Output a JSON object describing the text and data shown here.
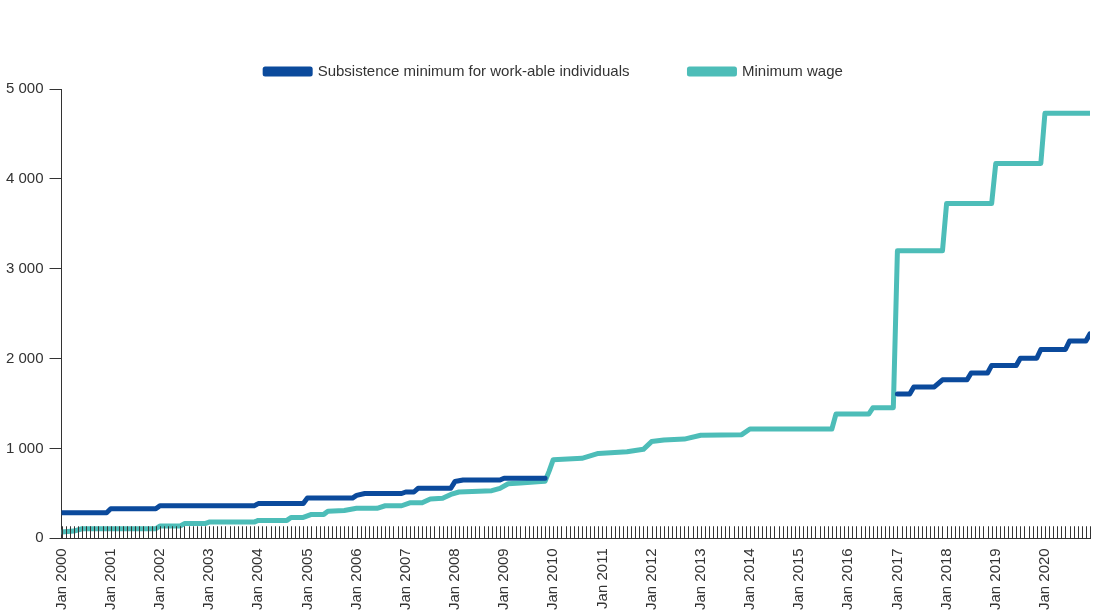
{
  "chart_data": {
    "type": "line",
    "legend": "top",
    "xlim": [
      "2000-01",
      "2020-12"
    ],
    "ylim": [
      0,
      5000
    ],
    "yticks": [
      0,
      {
        "value": 1000,
        "label": "1 000"
      },
      {
        "value": 2000,
        "label": "2 000"
      },
      {
        "value": 3000,
        "label": "3 000"
      },
      {
        "value": 4000,
        "label": "4 000"
      },
      {
        "value": 5000,
        "label": "5 000"
      }
    ],
    "xticks": [
      {
        "value": "2000-01",
        "label": "Jan 2000"
      },
      {
        "value": "2000-02",
        "label": null
      },
      {
        "value": "2000-03",
        "label": null
      },
      {
        "value": "2000-04",
        "label": null
      },
      {
        "value": "2000-05",
        "label": null
      },
      {
        "value": "2000-06",
        "label": null
      },
      {
        "value": "2000-07",
        "label": null
      },
      {
        "value": "2000-08",
        "label": null
      },
      {
        "value": "2000-09",
        "label": null
      },
      {
        "value": "2000-10",
        "label": null
      },
      {
        "value": "2000-11",
        "label": null
      },
      {
        "value": "2000-12",
        "label": null
      },
      {
        "value": "2001-01",
        "label": "Jan 2001"
      },
      {
        "value": "2001-02",
        "label": null
      },
      {
        "value": "2001-03",
        "label": null
      },
      {
        "value": "2001-04",
        "label": null
      },
      {
        "value": "2001-05",
        "label": null
      },
      {
        "value": "2001-06",
        "label": null
      },
      {
        "value": "2001-07",
        "label": null
      },
      {
        "value": "2001-08",
        "label": null
      },
      {
        "value": "2001-09",
        "label": null
      },
      {
        "value": "2001-10",
        "label": null
      },
      {
        "value": "2001-11",
        "label": null
      },
      {
        "value": "2001-12",
        "label": null
      },
      {
        "value": "2002-01",
        "label": "Jan 2002"
      },
      {
        "value": "2002-02",
        "label": null
      },
      {
        "value": "2002-03",
        "label": null
      },
      {
        "value": "2002-04",
        "label": null
      },
      {
        "value": "2002-05",
        "label": null
      },
      {
        "value": "2002-06",
        "label": null
      },
      {
        "value": "2002-07",
        "label": null
      },
      {
        "value": "2002-08",
        "label": null
      },
      {
        "value": "2002-09",
        "label": null
      },
      {
        "value": "2002-10",
        "label": null
      },
      {
        "value": "2002-11",
        "label": null
      },
      {
        "value": "2002-12",
        "label": null
      },
      {
        "value": "2003-01",
        "label": "Jan 2003"
      },
      {
        "value": "2003-02",
        "label": null
      },
      {
        "value": "2003-03",
        "label": null
      },
      {
        "value": "2003-04",
        "label": null
      },
      {
        "value": "2003-05",
        "label": null
      },
      {
        "value": "2003-06",
        "label": null
      },
      {
        "value": "2003-07",
        "label": null
      },
      {
        "value": "2003-08",
        "label": null
      },
      {
        "value": "2003-09",
        "label": null
      },
      {
        "value": "2003-10",
        "label": null
      },
      {
        "value": "2003-11",
        "label": null
      },
      {
        "value": "2003-12",
        "label": null
      },
      {
        "value": "2004-01",
        "label": "Jan 2004"
      },
      {
        "value": "2004-02",
        "label": null
      },
      {
        "value": "2004-03",
        "label": null
      },
      {
        "value": "2004-04",
        "label": null
      },
      {
        "value": "2004-05",
        "label": null
      },
      {
        "value": "2004-06",
        "label": null
      },
      {
        "value": "2004-07",
        "label": null
      },
      {
        "value": "2004-08",
        "label": null
      },
      {
        "value": "2004-09",
        "label": null
      },
      {
        "value": "2004-10",
        "label": null
      },
      {
        "value": "2004-11",
        "label": null
      },
      {
        "value": "2004-12",
        "label": null
      },
      {
        "value": "2005-01",
        "label": "Jan 2005"
      },
      {
        "value": "2005-02",
        "label": null
      },
      {
        "value": "2005-03",
        "label": null
      },
      {
        "value": "2005-04",
        "label": null
      },
      {
        "value": "2005-05",
        "label": null
      },
      {
        "value": "2005-06",
        "label": null
      },
      {
        "value": "2005-07",
        "label": null
      },
      {
        "value": "2005-08",
        "label": null
      },
      {
        "value": "2005-09",
        "label": null
      },
      {
        "value": "2005-10",
        "label": null
      },
      {
        "value": "2005-11",
        "label": null
      },
      {
        "value": "2005-12",
        "label": null
      },
      {
        "value": "2006-01",
        "label": "Jan 2006"
      },
      {
        "value": "2006-02",
        "label": null
      },
      {
        "value": "2006-03",
        "label": null
      },
      {
        "value": "2006-04",
        "label": null
      },
      {
        "value": "2006-05",
        "label": null
      },
      {
        "value": "2006-06",
        "label": null
      },
      {
        "value": "2006-07",
        "label": null
      },
      {
        "value": "2006-08",
        "label": null
      },
      {
        "value": "2006-09",
        "label": null
      },
      {
        "value": "2006-10",
        "label": null
      },
      {
        "value": "2006-11",
        "label": null
      },
      {
        "value": "2006-12",
        "label": null
      },
      {
        "value": "2007-01",
        "label": "Jan 2007"
      },
      {
        "value": "2007-02",
        "label": null
      },
      {
        "value": "2007-03",
        "label": null
      },
      {
        "value": "2007-04",
        "label": null
      },
      {
        "value": "2007-05",
        "label": null
      },
      {
        "value": "2007-06",
        "label": null
      },
      {
        "value": "2007-07",
        "label": null
      },
      {
        "value": "2007-08",
        "label": null
      },
      {
        "value": "2007-09",
        "label": null
      },
      {
        "value": "2007-10",
        "label": null
      },
      {
        "value": "2007-11",
        "label": null
      },
      {
        "value": "2007-12",
        "label": null
      },
      {
        "value": "2008-01",
        "label": "Jan 2008"
      },
      {
        "value": "2008-02",
        "label": null
      },
      {
        "value": "2008-03",
        "label": null
      },
      {
        "value": "2008-04",
        "label": null
      },
      {
        "value": "2008-05",
        "label": null
      },
      {
        "value": "2008-06",
        "label": null
      },
      {
        "value": "2008-07",
        "label": null
      },
      {
        "value": "2008-08",
        "label": null
      },
      {
        "value": "2008-09",
        "label": null
      },
      {
        "value": "2008-10",
        "label": null
      },
      {
        "value": "2008-11",
        "label": null
      },
      {
        "value": "2008-12",
        "label": null
      },
      {
        "value": "2009-01",
        "label": "Jan 2009"
      },
      {
        "value": "2009-02",
        "label": null
      },
      {
        "value": "2009-03",
        "label": null
      },
      {
        "value": "2009-04",
        "label": null
      },
      {
        "value": "2009-05",
        "label": null
      },
      {
        "value": "2009-06",
        "label": null
      },
      {
        "value": "2009-07",
        "label": null
      },
      {
        "value": "2009-08",
        "label": null
      },
      {
        "value": "2009-09",
        "label": null
      },
      {
        "value": "2009-10",
        "label": null
      },
      {
        "value": "2009-11",
        "label": null
      },
      {
        "value": "2009-12",
        "label": null
      },
      {
        "value": "2010-01",
        "label": "Jan 2010"
      },
      {
        "value": "2010-02",
        "label": null
      },
      {
        "value": "2010-03",
        "label": null
      },
      {
        "value": "2010-04",
        "label": null
      },
      {
        "value": "2010-05",
        "label": null
      },
      {
        "value": "2010-06",
        "label": null
      },
      {
        "value": "2010-07",
        "label": null
      },
      {
        "value": "2010-08",
        "label": null
      },
      {
        "value": "2010-09",
        "label": null
      },
      {
        "value": "2010-10",
        "label": null
      },
      {
        "value": "2010-11",
        "label": null
      },
      {
        "value": "2010-12",
        "label": null
      },
      {
        "value": "2011-01",
        "label": "Jan 2011"
      },
      {
        "value": "2011-02",
        "label": null
      },
      {
        "value": "2011-03",
        "label": null
      },
      {
        "value": "2011-04",
        "label": null
      },
      {
        "value": "2011-05",
        "label": null
      },
      {
        "value": "2011-06",
        "label": null
      },
      {
        "value": "2011-07",
        "label": null
      },
      {
        "value": "2011-08",
        "label": null
      },
      {
        "value": "2011-09",
        "label": null
      },
      {
        "value": "2011-10",
        "label": null
      },
      {
        "value": "2011-11",
        "label": null
      },
      {
        "value": "2011-12",
        "label": null
      },
      {
        "value": "2012-01",
        "label": "Jan 2012"
      },
      {
        "value": "2012-02",
        "label": null
      },
      {
        "value": "2012-03",
        "label": null
      },
      {
        "value": "2012-04",
        "label": null
      },
      {
        "value": "2012-05",
        "label": null
      },
      {
        "value": "2012-06",
        "label": null
      },
      {
        "value": "2012-07",
        "label": null
      },
      {
        "value": "2012-08",
        "label": null
      },
      {
        "value": "2012-09",
        "label": null
      },
      {
        "value": "2012-10",
        "label": null
      },
      {
        "value": "2012-11",
        "label": null
      },
      {
        "value": "2012-12",
        "label": null
      },
      {
        "value": "2013-01",
        "label": "Jan 2013"
      },
      {
        "value": "2013-02",
        "label": null
      },
      {
        "value": "2013-03",
        "label": null
      },
      {
        "value": "2013-04",
        "label": null
      },
      {
        "value": "2013-05",
        "label": null
      },
      {
        "value": "2013-06",
        "label": null
      },
      {
        "value": "2013-07",
        "label": null
      },
      {
        "value": "2013-08",
        "label": null
      },
      {
        "value": "2013-09",
        "label": null
      },
      {
        "value": "2013-10",
        "label": null
      },
      {
        "value": "2013-11",
        "label": null
      },
      {
        "value": "2013-12",
        "label": null
      },
      {
        "value": "2014-01",
        "label": "Jan 2014"
      },
      {
        "value": "2014-02",
        "label": null
      },
      {
        "value": "2014-03",
        "label": null
      },
      {
        "value": "2014-04",
        "label": null
      },
      {
        "value": "2014-05",
        "label": null
      },
      {
        "value": "2014-06",
        "label": null
      },
      {
        "value": "2014-07",
        "label": null
      },
      {
        "value": "2014-08",
        "label": null
      },
      {
        "value": "2014-09",
        "label": null
      },
      {
        "value": "2014-10",
        "label": null
      },
      {
        "value": "2014-11",
        "label": null
      },
      {
        "value": "2014-12",
        "label": null
      },
      {
        "value": "2015-01",
        "label": "Jan 2015"
      },
      {
        "value": "2015-02",
        "label": null
      },
      {
        "value": "2015-03",
        "label": null
      },
      {
        "value": "2015-04",
        "label": null
      },
      {
        "value": "2015-05",
        "label": null
      },
      {
        "value": "2015-06",
        "label": null
      },
      {
        "value": "2015-07",
        "label": null
      },
      {
        "value": "2015-08",
        "label": null
      },
      {
        "value": "2015-09",
        "label": null
      },
      {
        "value": "2015-10",
        "label": null
      },
      {
        "value": "2015-11",
        "label": null
      },
      {
        "value": "2015-12",
        "label": null
      },
      {
        "value": "2016-01",
        "label": "Jan 2016"
      },
      {
        "value": "2016-02",
        "label": null
      },
      {
        "value": "2016-03",
        "label": null
      },
      {
        "value": "2016-04",
        "label": null
      },
      {
        "value": "2016-05",
        "label": null
      },
      {
        "value": "2016-06",
        "label": null
      },
      {
        "value": "2016-07",
        "label": null
      },
      {
        "value": "2016-08",
        "label": null
      },
      {
        "value": "2016-09",
        "label": null
      },
      {
        "value": "2016-10",
        "label": null
      },
      {
        "value": "2016-11",
        "label": null
      },
      {
        "value": "2016-12",
        "label": null
      },
      {
        "value": "2017-01",
        "label": "Jan 2017"
      },
      {
        "value": "2017-02",
        "label": null
      },
      {
        "value": "2017-03",
        "label": null
      },
      {
        "value": "2017-04",
        "label": null
      },
      {
        "value": "2017-05",
        "label": null
      },
      {
        "value": "2017-06",
        "label": null
      },
      {
        "value": "2017-07",
        "label": null
      },
      {
        "value": "2017-08",
        "label": null
      },
      {
        "value": "2017-09",
        "label": null
      },
      {
        "value": "2017-10",
        "label": null
      },
      {
        "value": "2017-11",
        "label": null
      },
      {
        "value": "2017-12",
        "label": null
      },
      {
        "value": "2018-01",
        "label": "Jan 2018"
      },
      {
        "value": "2018-02",
        "label": null
      },
      {
        "value": "2018-03",
        "label": null
      },
      {
        "value": "2018-04",
        "label": null
      },
      {
        "value": "2018-05",
        "label": null
      },
      {
        "value": "2018-06",
        "label": null
      },
      {
        "value": "2018-07",
        "label": null
      },
      {
        "value": "2018-08",
        "label": null
      },
      {
        "value": "2018-09",
        "label": null
      },
      {
        "value": "2018-10",
        "label": null
      },
      {
        "value": "2018-11",
        "label": null
      },
      {
        "value": "2018-12",
        "label": null
      },
      {
        "value": "2019-01",
        "label": "Jan 2019"
      },
      {
        "value": "2019-02",
        "label": null
      },
      {
        "value": "2019-03",
        "label": null
      },
      {
        "value": "2019-04",
        "label": null
      },
      {
        "value": "2019-05",
        "label": null
      },
      {
        "value": "2019-06",
        "label": null
      },
      {
        "value": "2019-07",
        "label": null
      },
      {
        "value": "2019-08",
        "label": null
      },
      {
        "value": "2019-09",
        "label": null
      },
      {
        "value": "2019-10",
        "label": null
      },
      {
        "value": "2019-11",
        "label": null
      },
      {
        "value": "2019-12",
        "label": null
      },
      {
        "value": "2020-01",
        "label": "Jan 2020"
      },
      {
        "value": "2020-02",
        "label": null
      },
      {
        "value": "2020-03",
        "label": null
      },
      {
        "value": "2020-04",
        "label": null
      },
      {
        "value": "2020-05",
        "label": null
      },
      {
        "value": "2020-06",
        "label": null
      },
      {
        "value": "2020-07",
        "label": null
      },
      {
        "value": "2020-08",
        "label": null
      },
      {
        "value": "2020-09",
        "label": null
      },
      {
        "value": "2020-10",
        "label": null
      },
      {
        "value": "2020-11",
        "label": null
      },
      {
        "value": "2020-12",
        "label": null
      }
    ],
    "series": [
      {
        "name": "Subsistence minimum for work-able individuals",
        "color": "#0b4a9c",
        "x": [
          "2000-01",
          "2000-12",
          "2001-01",
          "2001-12",
          "2002-01",
          "2003-12",
          "2004-01",
          "2004-12",
          "2005-01",
          "2005-12",
          "2006-01",
          "2006-03",
          "2006-12",
          "2007-01",
          "2007-03",
          "2007-04",
          "2007-12",
          "2008-01",
          "2008-03",
          "2008-12",
          "2009-01",
          "2009-11",
          "2009-12",
          "2017-01",
          "2017-04",
          "2017-05",
          "2017-10",
          "2017-12",
          "2018-06",
          "2018-07",
          "2018-11",
          "2018-12",
          "2019-06",
          "2019-07",
          "2019-11",
          "2019-12",
          "2020-06",
          "2020-07",
          "2020-11",
          "2020-12"
        ],
        "values": [
          284,
          284,
          328,
          328,
          361,
          361,
          386,
          386,
          447,
          447,
          477,
          498,
          498,
          515,
          515,
          556,
          556,
          631,
          648,
          648,
          669,
          669,
          null,
          1605,
          1605,
          1684,
          1684,
          1764,
          1764,
          1840,
          1840,
          1924,
          1924,
          2004,
          2004,
          2101,
          2101,
          2195,
          2195,
          2275
        ]
      },
      {
        "name": "Minimum wage",
        "color": "#4dbdb8",
        "x": [
          "2000-01",
          "2000-04",
          "2000-06",
          "2001-12",
          "2002-01",
          "2002-06",
          "2002-07",
          "2002-12",
          "2003-01",
          "2003-12",
          "2004-01",
          "2004-08",
          "2004-09",
          "2004-12",
          "2005-02",
          "2005-05",
          "2005-06",
          "2005-10",
          "2006-01",
          "2006-06",
          "2006-08",
          "2006-12",
          "2007-02",
          "2007-05",
          "2007-07",
          "2007-10",
          "2007-12",
          "2008-02",
          "2008-10",
          "2008-12",
          "2009-02",
          "2009-05",
          "2009-10",
          "2009-11",
          "2009-12",
          "2010-01",
          "2010-08",
          "2010-12",
          "2011-07",
          "2011-11",
          "2012-01",
          "2012-04",
          "2012-09",
          "2013-01",
          "2013-11",
          "2014-01",
          "2015-09",
          "2015-10",
          "2016-06",
          "2016-07",
          "2016-12",
          "2017-01",
          "2017-12",
          "2018-01",
          "2018-12",
          "2019-01",
          "2019-12",
          "2020-01",
          "2020-12"
        ],
        "values": [
          69,
          80,
          106,
          106,
          137,
          137,
          164,
          164,
          180,
          180,
          199,
          199,
          232,
          232,
          266,
          266,
          300,
          310,
          334,
          334,
          362,
          362,
          395,
          395,
          437,
          445,
          488,
          515,
          530,
          556,
          607,
          615,
          631,
          635,
          747,
          875,
          890,
          944,
          962,
          990,
          1076,
          1094,
          1104,
          1146,
          1153,
          1216,
          1216,
          1382,
          1382,
          1452,
          1452,
          3200,
          3200,
          3726,
          3726,
          4172,
          4172,
          4729,
          4729
        ]
      }
    ]
  }
}
